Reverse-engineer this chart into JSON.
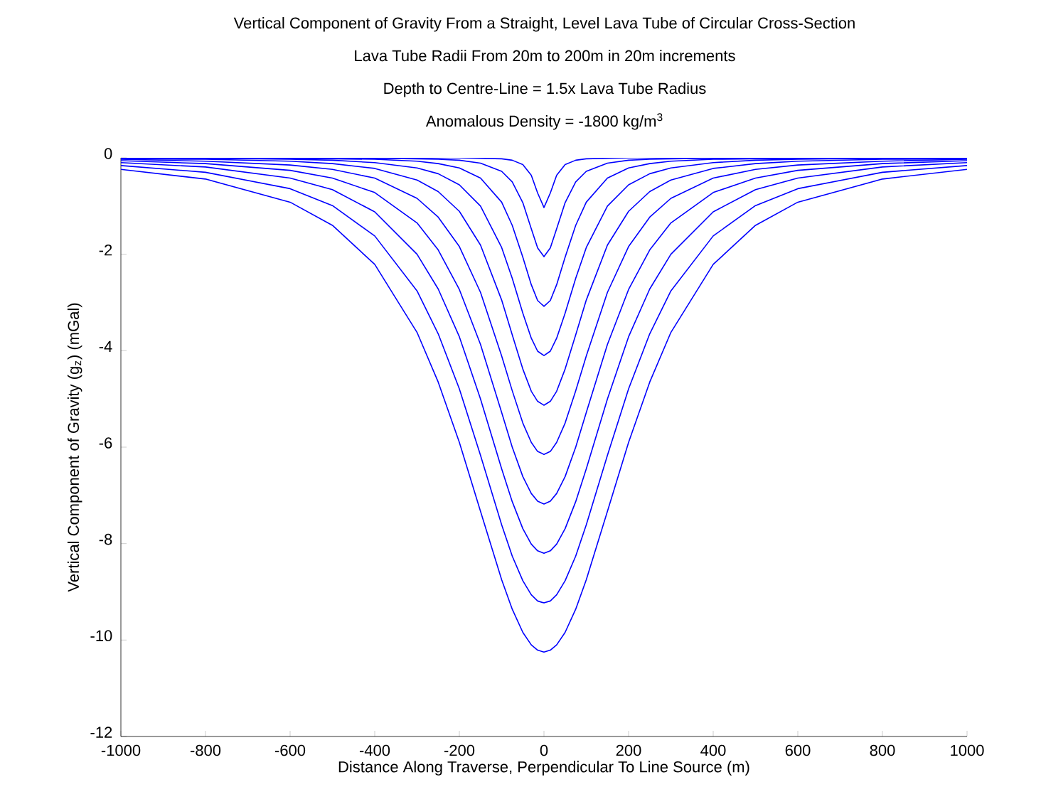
{
  "chart_data": {
    "type": "line",
    "title": "Vertical Component of Gravity From a Straight, Level Lava Tube of Circular Cross-Section",
    "subtitle": "Lava Tube Radii From 20m to 200m in 20m increments",
    "annotations": [
      "Depth to Centre-Line = 1.5x Lava Tube Radius",
      "Anomalous Density = -1800 kg/m$^{3}$"
    ],
    "xlabel": "Distance Along Traverse, Perpendicular To Line Source (m)",
    "ylabel": "Vertical Component of Gravity (g$_{z}$) (mGal)",
    "x": [
      -1000,
      -800,
      -600,
      -500,
      -400,
      -300,
      -250,
      -200,
      -150,
      -100,
      -75,
      -50,
      -30,
      -15,
      0,
      15,
      30,
      50,
      75,
      100,
      150,
      200,
      250,
      300,
      400,
      500,
      600,
      800,
      1000
    ],
    "series": [
      {
        "color": "#0000ff",
        "values": [
          0,
          0,
          0,
          0,
          0,
          0,
          0,
          0,
          -0.01,
          -0.02,
          -0.05,
          -0.14,
          -0.36,
          -0.73,
          -1.03,
          -0.73,
          -0.36,
          -0.14,
          -0.05,
          -0.02,
          -0.01,
          0,
          0,
          0,
          0,
          0,
          0,
          0,
          0
        ]
      },
      {
        "color": "#0000ff",
        "values": [
          0,
          0,
          0,
          0,
          -0.01,
          -0.02,
          -0.03,
          -0.05,
          -0.11,
          -0.28,
          -0.5,
          -0.93,
          -1.47,
          -1.87,
          -2.05,
          -1.87,
          -1.47,
          -0.93,
          -0.5,
          -0.28,
          -0.11,
          -0.05,
          -0.03,
          -0.02,
          -0.01,
          0,
          0,
          0,
          0
        ]
      },
      {
        "color": "#0000ff",
        "values": [
          0,
          0,
          -0.01,
          -0.02,
          -0.03,
          -0.07,
          -0.12,
          -0.21,
          -0.42,
          -0.92,
          -1.4,
          -2.06,
          -2.63,
          -2.96,
          -3.08,
          -2.96,
          -2.63,
          -2.06,
          -1.4,
          -0.92,
          -0.42,
          -0.21,
          -0.12,
          -0.07,
          -0.03,
          -0.02,
          -0.01,
          0,
          0
        ]
      },
      {
        "color": "#0000ff",
        "values": [
          -0.01,
          -0.01,
          -0.03,
          -0.05,
          -0.1,
          -0.21,
          -0.33,
          -0.56,
          -1,
          -1.86,
          -2.5,
          -3.22,
          -3.74,
          -4.01,
          -4.1,
          -4.01,
          -3.74,
          -3.22,
          -2.5,
          -1.86,
          -1,
          -0.56,
          -0.33,
          -0.21,
          -0.1,
          -0.05,
          -0.03,
          -0.01,
          -0.01
        ]
      },
      {
        "color": "#0000ff",
        "values": [
          -0.02,
          -0.03,
          -0.07,
          -0.12,
          -0.22,
          -0.46,
          -0.7,
          -1.11,
          -1.81,
          -2.95,
          -3.67,
          -4.38,
          -4.84,
          -5.05,
          -5.13,
          -5.05,
          -4.84,
          -4.38,
          -3.67,
          -2.95,
          -1.81,
          -1.11,
          -0.7,
          -0.46,
          -0.22,
          -0.12,
          -0.07,
          -0.03,
          -0.02
        ]
      },
      {
        "color": "#0000ff",
        "values": [
          -0.03,
          -0.07,
          -0.15,
          -0.24,
          -0.42,
          -0.84,
          -1.23,
          -1.84,
          -2.79,
          -4.11,
          -4.83,
          -5.5,
          -5.9,
          -6.09,
          -6.15,
          -6.09,
          -5.9,
          -5.5,
          -4.83,
          -4.11,
          -2.79,
          -1.84,
          -1.23,
          -0.84,
          -0.42,
          -0.24,
          -0.15,
          -0.07,
          -0.03
        ]
      },
      {
        "color": "#0000ff",
        "values": [
          -0.06,
          -0.12,
          -0.26,
          -0.42,
          -0.72,
          -1.35,
          -1.91,
          -2.73,
          -3.87,
          -5.28,
          -6,
          -6.61,
          -6.96,
          -7.12,
          -7.18,
          -7.12,
          -6.96,
          -6.61,
          -6,
          -5.28,
          -3.87,
          -2.73,
          -1.91,
          -1.35,
          -0.72,
          -0.42,
          -0.26,
          -0.12,
          -0.06
        ]
      },
      {
        "color": "#0000ff",
        "values": [
          -0.1,
          -0.19,
          -0.42,
          -0.66,
          -1.12,
          -2,
          -2.72,
          -3.71,
          -5,
          -6.45,
          -7.13,
          -7.69,
          -8.01,
          -8.15,
          -8.2,
          -8.15,
          -8.01,
          -7.69,
          -7.13,
          -6.45,
          -5,
          -3.71,
          -2.72,
          -2,
          -1.12,
          -0.66,
          -0.42,
          -0.19,
          -0.1
        ]
      },
      {
        "color": "#0000ff",
        "values": [
          -0.16,
          -0.3,
          -0.64,
          -0.99,
          -1.62,
          -2.76,
          -3.65,
          -4.79,
          -6.17,
          -7.61,
          -8.26,
          -8.77,
          -9.06,
          -9.19,
          -9.23,
          -9.19,
          -9.06,
          -8.77,
          -8.26,
          -7.61,
          -6.17,
          -4.79,
          -3.65,
          -2.76,
          -1.62,
          -0.99,
          -0.64,
          -0.3,
          -0.16
        ]
      },
      {
        "color": "#0000ff",
        "values": [
          -0.24,
          -0.44,
          -0.92,
          -1.4,
          -2.21,
          -3.62,
          -4.65,
          -5.9,
          -7.33,
          -8.75,
          -9.36,
          -9.84,
          -10.1,
          -10.21,
          -10.25,
          -10.21,
          -10.1,
          -9.84,
          -9.36,
          -8.75,
          -7.33,
          -5.9,
          -4.65,
          -3.62,
          -2.21,
          -1.4,
          -0.92,
          -0.44,
          -0.24
        ]
      }
    ],
    "xlim": [
      -1000,
      1000
    ],
    "ylim": [
      -12,
      0
    ],
    "xticks": [
      -1000,
      -800,
      -600,
      -400,
      -200,
      0,
      200,
      400,
      600,
      800,
      1000
    ],
    "yticks": [
      -12,
      -10,
      -8,
      -6,
      -4,
      -2,
      0
    ],
    "grid": false,
    "marker": "none",
    "line_style": "solid"
  }
}
